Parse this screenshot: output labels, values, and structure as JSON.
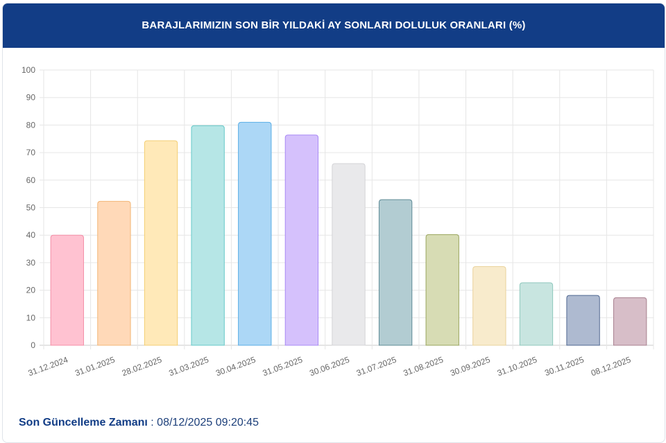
{
  "header": {
    "title": "BARAJLARIMIZIN SON BİR YILDAKİ AY SONLARI DOLULUK ORANLARI (%)"
  },
  "footer": {
    "label": "Son Güncelleme Zamanı",
    "separator": " : ",
    "value": "08/12/2025 09:20:45"
  },
  "colors": {
    "header_bg": "#123d86",
    "text": "#123d86"
  },
  "chart_data": {
    "type": "bar",
    "title": "BARAJLARIMIZIN SON BİR YILDAKİ AY SONLARI DOLULUK ORANLARI (%)",
    "xlabel": "",
    "ylabel": "",
    "ylim": [
      0,
      100
    ],
    "yticks": [
      0,
      10,
      20,
      30,
      40,
      50,
      60,
      70,
      80,
      90,
      100
    ],
    "grid": true,
    "categories": [
      "31.12.2024",
      "31.01.2025",
      "28.02.2025",
      "31.03.2025",
      "30.04.2025",
      "31.05.2025",
      "30.06.2025",
      "31.07.2025",
      "31.08.2025",
      "30.09.2025",
      "31.10.2025",
      "30.11.2025",
      "08.12.2025"
    ],
    "values": [
      40.0,
      52.3,
      74.3,
      79.8,
      81.0,
      76.4,
      66.0,
      52.9,
      40.2,
      28.6,
      22.7,
      18.1,
      17.3
    ],
    "fills": [
      "#ffc2d1",
      "#ffd9b8",
      "#ffe9b8",
      "#b6e6e6",
      "#acd7f6",
      "#d5c1fc",
      "#e9e9eb",
      "#b2ccd2",
      "#d7dcb4",
      "#f8ebcc",
      "#c8e5e0",
      "#aebad0",
      "#d7bec8"
    ],
    "strokes": [
      "#f48fa8",
      "#f3b676",
      "#f3ce74",
      "#66c9c9",
      "#5aaee6",
      "#a98af5",
      "#d4d4d7",
      "#5f8b96",
      "#9aa55e",
      "#ead39d",
      "#8fc8bd",
      "#4f6790",
      "#a8808f"
    ]
  }
}
